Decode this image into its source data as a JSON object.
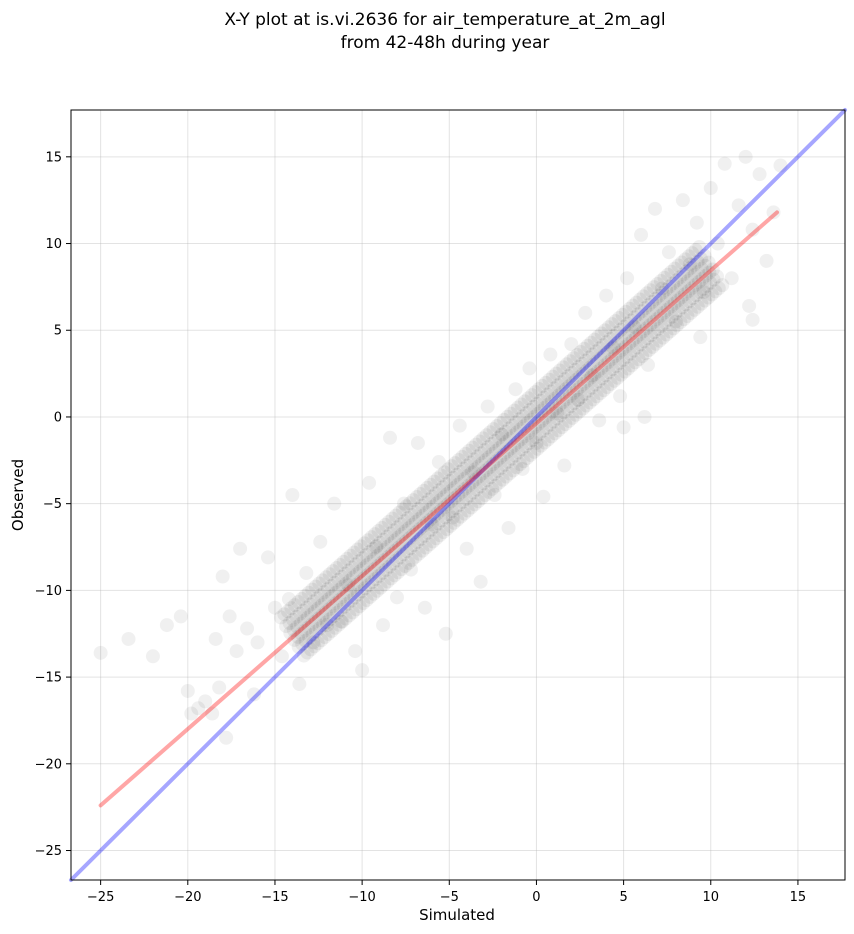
{
  "chart_data": {
    "type": "scatter",
    "title_line1": "X-Y plot at is.vi.2636 for air_temperature_at_2m_agl",
    "title_line2": "from 42-48h during year",
    "xlabel": "Simulated",
    "ylabel": "Observed",
    "xlim": [
      -26.7,
      17.7
    ],
    "ylim": [
      -26.7,
      17.7
    ],
    "xticks": [
      -25,
      -20,
      -15,
      -10,
      -5,
      0,
      5,
      10,
      15
    ],
    "yticks": [
      -25,
      -20,
      -15,
      -10,
      -5,
      0,
      5,
      10,
      15
    ],
    "xtick_labels": [
      "−25",
      "−20",
      "−15",
      "−10",
      "−5",
      "0",
      "5",
      "10",
      "15"
    ],
    "ytick_labels": [
      "−25",
      "−20",
      "−15",
      "−10",
      "−5",
      "0",
      "5",
      "10",
      "15"
    ],
    "grid": true,
    "point_color": "#000000",
    "point_opacity": 0.06,
    "series": [
      {
        "values": [
          [
            -25,
            -13.6
          ],
          [
            -23.4,
            -12.8
          ],
          [
            -22,
            -13.8
          ],
          [
            -21.2,
            -12.0
          ],
          [
            -20.4,
            -11.5
          ],
          [
            -20.0,
            -15.8
          ],
          [
            -19.8,
            -17.1
          ],
          [
            -19.4,
            -16.8
          ],
          [
            -19.0,
            -16.4
          ],
          [
            -18.6,
            -17.1
          ],
          [
            -18.2,
            -15.6
          ],
          [
            -17.8,
            -18.5
          ],
          [
            -18.4,
            -12.8
          ],
          [
            -18.0,
            -9.2
          ],
          [
            -17.6,
            -11.5
          ],
          [
            -17.2,
            -13.5
          ],
          [
            -17.0,
            -7.6
          ],
          [
            -16.6,
            -12.2
          ],
          [
            -16.2,
            -16.0
          ],
          [
            -16.0,
            -13.0
          ],
          [
            -15.4,
            -8.1
          ],
          [
            -15.0,
            -11.0
          ],
          [
            -14.6,
            -13.8
          ],
          [
            -14.2,
            -10.5
          ],
          [
            -14.0,
            -4.5
          ],
          [
            -13.6,
            -15.4
          ],
          [
            -13.2,
            -9.0
          ],
          [
            -12.8,
            -13.0
          ],
          [
            -12.4,
            -7.2
          ],
          [
            -12.0,
            -12.0
          ],
          [
            -11.6,
            -5.0
          ],
          [
            -11.2,
            -11.8
          ],
          [
            -10.8,
            -9.7
          ],
          [
            -10.4,
            -13.5
          ],
          [
            -10.0,
            -14.6
          ],
          [
            -9.6,
            -3.8
          ],
          [
            -9.2,
            -7.5
          ],
          [
            -8.8,
            -12.0
          ],
          [
            -8.4,
            -1.2
          ],
          [
            -8.0,
            -10.4
          ],
          [
            -7.6,
            -5.0
          ],
          [
            -7.2,
            -8.8
          ],
          [
            -6.8,
            -1.5
          ],
          [
            -6.4,
            -11.0
          ],
          [
            -6.0,
            -6.2
          ],
          [
            -5.6,
            -2.6
          ],
          [
            -5.2,
            -12.5
          ],
          [
            -4.8,
            -5.8
          ],
          [
            -4.4,
            -0.5
          ],
          [
            -4.0,
            -7.6
          ],
          [
            -3.6,
            -3.2
          ],
          [
            -3.2,
            -9.5
          ],
          [
            -2.8,
            0.6
          ],
          [
            -2.4,
            -4.5
          ],
          [
            -2.0,
            -1.0
          ],
          [
            -1.6,
            -6.4
          ],
          [
            -1.2,
            1.6
          ],
          [
            -0.8,
            -3.0
          ],
          [
            -0.4,
            2.8
          ],
          [
            0.0,
            -1.5
          ],
          [
            0.4,
            -4.6
          ],
          [
            0.8,
            3.6
          ],
          [
            1.2,
            0.2
          ],
          [
            1.6,
            -2.8
          ],
          [
            2.0,
            4.2
          ],
          [
            2.4,
            1.0
          ],
          [
            2.8,
            6.0
          ],
          [
            3.2,
            2.4
          ],
          [
            3.6,
            -0.2
          ],
          [
            4.0,
            7.0
          ],
          [
            4.4,
            4.0
          ],
          [
            4.8,
            1.2
          ],
          [
            5.2,
            8.0
          ],
          [
            5.6,
            5.2
          ],
          [
            6.0,
            10.5
          ],
          [
            6.4,
            3.0
          ],
          [
            6.8,
            12.0
          ],
          [
            7.2,
            7.4
          ],
          [
            7.6,
            9.5
          ],
          [
            8.0,
            5.5
          ],
          [
            8.4,
            12.5
          ],
          [
            8.8,
            8.8
          ],
          [
            9.2,
            11.2
          ],
          [
            9.6,
            7.2
          ],
          [
            10.0,
            13.2
          ],
          [
            10.4,
            10.0
          ],
          [
            10.8,
            14.6
          ],
          [
            11.2,
            8.0
          ],
          [
            11.6,
            12.2
          ],
          [
            12.0,
            15.0
          ],
          [
            12.4,
            10.8
          ],
          [
            12.8,
            14.0
          ],
          [
            13.2,
            9.0
          ],
          [
            13.6,
            11.8
          ],
          [
            14.0,
            14.5
          ],
          [
            12.2,
            6.4
          ],
          [
            12.4,
            5.6
          ],
          [
            9.4,
            4.6
          ],
          [
            6.2,
            0.0
          ],
          [
            5.0,
            -0.6
          ]
        ]
      }
    ],
    "lines": [
      {
        "name": "",
        "color": "#0000ff",
        "opacity": 0.35,
        "x": [
          -26.7,
          17.7
        ],
        "y": [
          -26.7,
          17.7
        ]
      },
      {
        "name": "",
        "color": "#ff0000",
        "opacity": 0.35,
        "x": [
          -25,
          13.8
        ],
        "y": [
          -22.4,
          11.8
        ]
      }
    ]
  }
}
